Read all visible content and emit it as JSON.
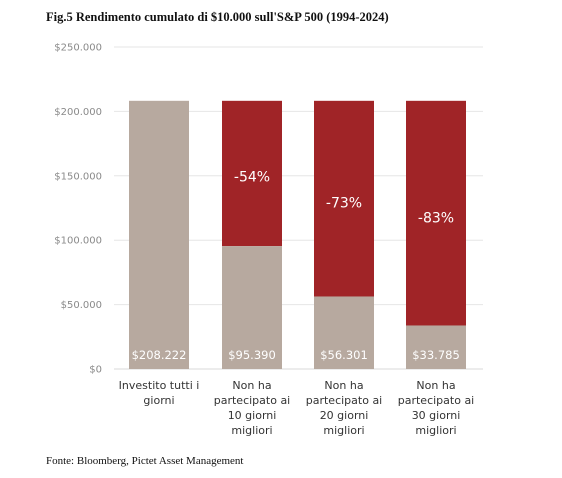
{
  "title": "Fig.5 Rendimento cumulato di $10.000 sull'S&P 500 (1994-2024)",
  "source": "Fonte: Bloomberg, Pictet Asset Management",
  "colors": {
    "invested": "#b7a99f",
    "lost": "#a02427",
    "grid": "#e6e6e6",
    "axis_text": "#8a8a8a"
  },
  "chart_data": {
    "type": "bar",
    "stacked": true,
    "ylim": [
      0,
      250000
    ],
    "y_ticks": [
      {
        "value": 0,
        "label": "$0"
      },
      {
        "value": 50000,
        "label": "$50.000"
      },
      {
        "value": 100000,
        "label": "$100.000"
      },
      {
        "value": 150000,
        "label": "$150.000"
      },
      {
        "value": 200000,
        "label": "$200.000"
      },
      {
        "value": 250000,
        "label": "$250.000"
      }
    ],
    "grid": true,
    "categories": [
      [
        "Investito tutti i",
        "giorni"
      ],
      [
        "Non ha",
        "partecipato ai",
        "10 giorni",
        "migliori"
      ],
      [
        "Non ha",
        "partecipato ai",
        "20 giorni",
        "migliori"
      ],
      [
        "Non ha",
        "partecipato ai",
        "30 giorni",
        "migliori"
      ]
    ],
    "values": [
      208222,
      95390,
      56301,
      33785
    ],
    "value_labels": [
      "$208.222",
      "$95.390",
      "$56.301",
      "$33.785"
    ],
    "total": 208222,
    "loss_labels": [
      "",
      "-54%",
      "-73%",
      "-83%"
    ]
  }
}
